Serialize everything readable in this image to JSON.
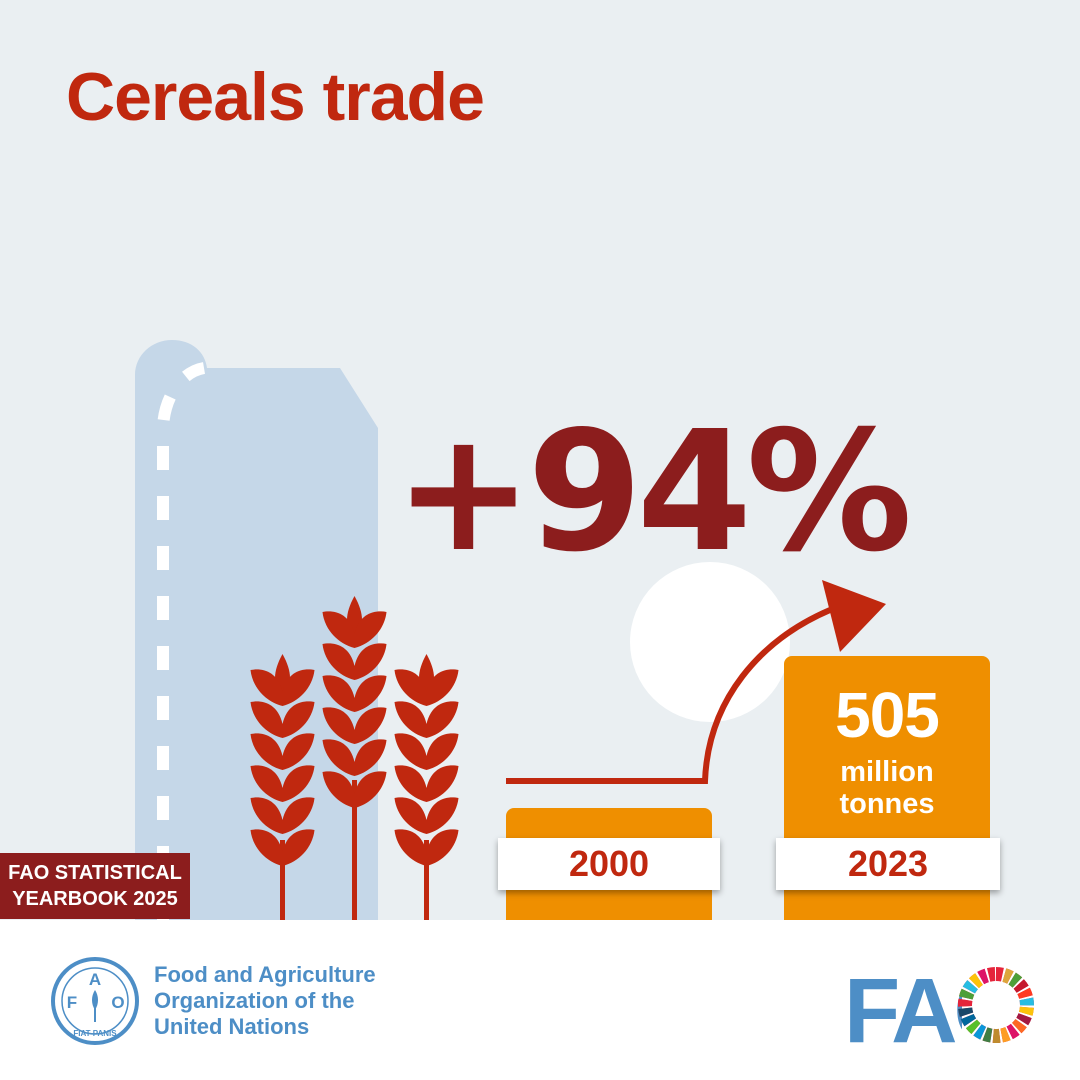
{
  "title": "Cereals trade",
  "change": "+94%",
  "bars": [
    {
      "year": "2000"
    },
    {
      "year": "2023",
      "value": "505",
      "unit_line1": "million",
      "unit_line2": "tonnes"
    }
  ],
  "badge": {
    "line1": "FAO STATISTICAL",
    "line2": "YEARBOOK 2025"
  },
  "footer": {
    "org_name_line1": "Food and Agriculture",
    "org_name_line2": "Organization of the",
    "org_name_line3": "United Nations",
    "emblem": {
      "letter_f": "F",
      "letter_a": "A",
      "letter_o": "O",
      "motto": "FIAT PANIS"
    },
    "logo_text": "FAO"
  },
  "colors": {
    "background": "#eaeff2",
    "title_red": "#c0280f",
    "dark_red": "#8c1d1d",
    "orange": "#ef8f00",
    "silo_blue": "#c5d7e8",
    "fao_blue": "#4d8ec6"
  },
  "icons": [
    "silo-icon",
    "wheat-icon",
    "sun-icon",
    "arrow-icon",
    "fao-emblem-icon",
    "sdg-wheel-icon"
  ]
}
